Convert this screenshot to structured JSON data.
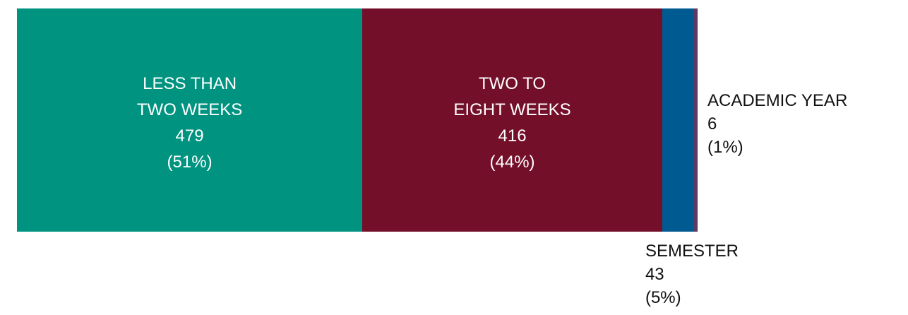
{
  "chart_data": {
    "type": "bar",
    "stacked": true,
    "orientation": "horizontal",
    "categories": [
      "LESS THAN\nTWO WEEKS",
      "TWO TO\nEIGHT WEEKS",
      "SEMESTER",
      "ACADEMIC YEAR"
    ],
    "values": [
      479,
      416,
      43,
      6
    ],
    "shares": [
      51,
      44,
      5,
      1
    ],
    "share_labels": [
      "(51%)",
      "(44%)",
      "(5%)",
      "(1%)"
    ],
    "colors": [
      "#009480",
      "#740f2a",
      "#005a92",
      "#5e3b5e"
    ]
  }
}
